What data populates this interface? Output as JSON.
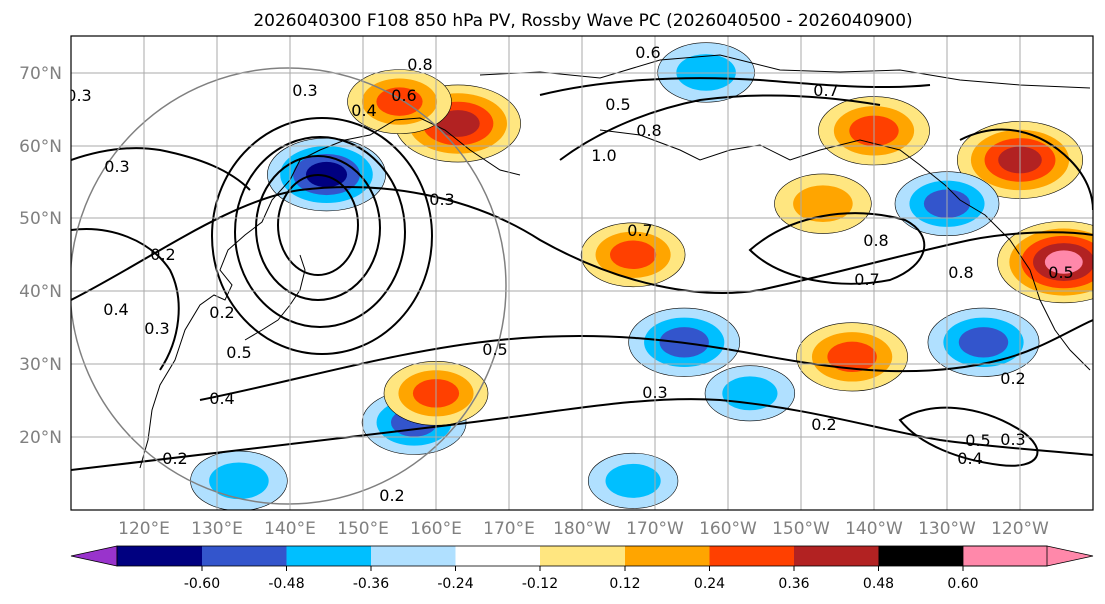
{
  "figure": {
    "title": "2026040300 F108 850 hPa PV, Rossby Wave PC (2026040500 - 2026040900)"
  },
  "map": {
    "lat_labels": [
      "70°N",
      "60°N",
      "50°N",
      "40°N",
      "30°N",
      "20°N"
    ],
    "lon_labels": [
      "120°E",
      "130°E",
      "140°E",
      "150°E",
      "160°E",
      "170°E",
      "180°W",
      "170°W",
      "160°W",
      "150°W",
      "140°W",
      "130°W",
      "120°W"
    ],
    "lat_range": [
      10,
      75
    ],
    "lon_range": [
      113,
      253
    ],
    "grid": true
  },
  "contours": {
    "field": "PV",
    "labels": [
      "0.6",
      "0.8",
      "0.7",
      "0.3",
      "0.4",
      "0.6",
      "0.5",
      "1.0",
      "0.8",
      "0.7",
      "0.3",
      "0.2",
      "0.8",
      "0.7",
      "0.8",
      "0.5",
      "0.2",
      "0.4",
      "0.3",
      "0.2",
      "0.5",
      "0.2",
      "0.3",
      "0.5",
      "0.4",
      "0.3",
      "0.2",
      "0.3",
      "0.4",
      "0.3",
      "0.5",
      "0.2"
    ]
  },
  "colorbar": {
    "extend": "both",
    "ticks": [
      "-0.60",
      "-0.48",
      "-0.36",
      "-0.24",
      "-0.12",
      "0.12",
      "0.24",
      "0.36",
      "0.48",
      "0.60"
    ],
    "colors": [
      "#9933cc",
      "#000080",
      "#3355cc",
      "#00bfff",
      "#b0e0ff",
      "#ffffff",
      "#ffe680",
      "#ffa500",
      "#ff4000",
      "#b22222",
      "#ff88aa"
    ]
  },
  "anomalies": [
    {
      "lon": 148,
      "lat": 56,
      "value": -0.5
    },
    {
      "lon": 166,
      "lat": 63,
      "value": 0.55
    },
    {
      "lon": 158,
      "lat": 66,
      "value": 0.4
    },
    {
      "lon": 197,
      "lat": 33,
      "value": -0.45
    },
    {
      "lon": 200,
      "lat": 70,
      "value": -0.35
    },
    {
      "lon": 223,
      "lat": 62,
      "value": 0.45
    },
    {
      "lon": 243,
      "lat": 58,
      "value": 0.55
    },
    {
      "lon": 249,
      "lat": 44,
      "value": 0.6
    },
    {
      "lon": 233,
      "lat": 52,
      "value": -0.4
    },
    {
      "lon": 238,
      "lat": 33,
      "value": -0.45
    },
    {
      "lon": 220,
      "lat": 31,
      "value": 0.45
    },
    {
      "lon": 160,
      "lat": 22,
      "value": -0.4
    },
    {
      "lon": 190,
      "lat": 45,
      "value": 0.4
    },
    {
      "lon": 206,
      "lat": 26,
      "value": -0.3
    },
    {
      "lon": 163,
      "lat": 26,
      "value": 0.4
    },
    {
      "lon": 216,
      "lat": 52,
      "value": 0.35
    },
    {
      "lon": 136,
      "lat": 14,
      "value": -0.35
    },
    {
      "lon": 190,
      "lat": 14,
      "value": -0.3
    }
  ]
}
